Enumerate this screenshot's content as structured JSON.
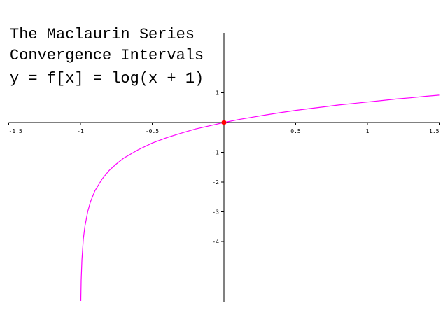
{
  "chart_data": {
    "type": "line",
    "title": [
      "The Maclaurin Series",
      "Convergence Intervals",
      "y = f[x] = log(x + 1)"
    ],
    "xlabel": "",
    "ylabel": "",
    "xlim": [
      -1.5,
      1.5
    ],
    "ylim": [
      -6,
      1.6
    ],
    "x_ticks": [
      -1.5,
      -1,
      -0.5,
      0.5,
      1,
      1.5
    ],
    "x_tick_labels": [
      "-1.5",
      "-1",
      "-0.5",
      "0.5",
      "1",
      "1.5"
    ],
    "y_ticks": [
      1,
      -1,
      -2,
      -3,
      -4
    ],
    "y_tick_labels": [
      "1",
      "-1",
      "-2",
      "-3",
      "-4"
    ],
    "grid": false,
    "series": [
      {
        "function": "log(x + 1)",
        "color": "#ff00ff",
        "x": [
          -0.9975,
          -0.995,
          -0.99,
          -0.98,
          -0.97,
          -0.95,
          -0.93,
          -0.9,
          -0.85,
          -0.8,
          -0.75,
          -0.7,
          -0.6,
          -0.5,
          -0.4,
          -0.3,
          -0.2,
          -0.1,
          0,
          0.1,
          0.2,
          0.3,
          0.4,
          0.5,
          0.6,
          0.7,
          0.8,
          0.9,
          1.0,
          1.1,
          1.2,
          1.3,
          1.4,
          1.5
        ],
        "y": [
          -6.0,
          -5.3,
          -4.61,
          -3.91,
          -3.51,
          -3.0,
          -2.66,
          -2.3,
          -1.9,
          -1.61,
          -1.39,
          -1.2,
          -0.92,
          -0.69,
          -0.51,
          -0.36,
          -0.22,
          -0.11,
          0,
          0.1,
          0.18,
          0.26,
          0.34,
          0.41,
          0.47,
          0.53,
          0.59,
          0.64,
          0.69,
          0.74,
          0.79,
          0.83,
          0.88,
          0.92
        ]
      }
    ],
    "points": [
      {
        "x": 0,
        "y": 0,
        "color": "#ff0000"
      }
    ]
  }
}
